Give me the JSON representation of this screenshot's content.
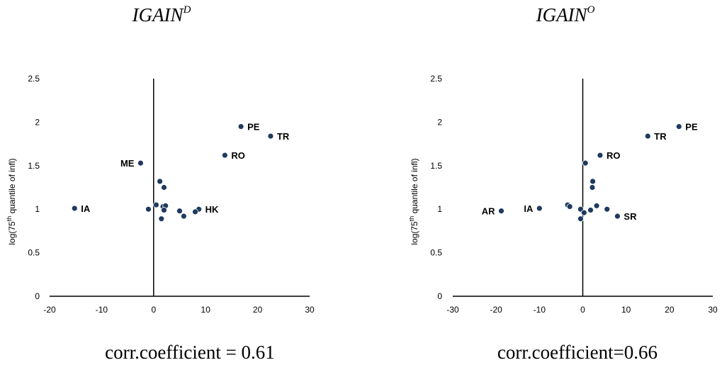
{
  "chart_data": [
    {
      "type": "scatter",
      "title": "IGAIN",
      "title_sup": "D",
      "caption": "corr.coefficient = 0.61",
      "ylabel_pre": "log(75",
      "ylabel_sup": "th",
      "ylabel_post": " quantile of infl)",
      "xlim": [
        -20,
        30
      ],
      "ylim": [
        0,
        2.5
      ],
      "x_ticks": [
        "-20",
        "-10",
        "0",
        "10",
        "20",
        "30"
      ],
      "x_tick_vals": [
        -20,
        -10,
        0,
        10,
        20,
        30
      ],
      "y_ticks": [
        "0",
        "0.5",
        "1",
        "1.5",
        "2",
        "2.5"
      ],
      "y_tick_vals": [
        0,
        0.5,
        1,
        1.5,
        2,
        2.5
      ],
      "point_color": "#1f3a5f",
      "points": [
        {
          "x": -15.2,
          "y": 1.01,
          "label": "IA",
          "side": "right"
        },
        {
          "x": -2.5,
          "y": 1.53,
          "label": "ME",
          "side": "left"
        },
        {
          "x": 16.8,
          "y": 1.95,
          "label": "PE",
          "side": "right"
        },
        {
          "x": 22.5,
          "y": 1.84,
          "label": "TR",
          "side": "right"
        },
        {
          "x": 13.7,
          "y": 1.62,
          "label": "RO",
          "side": "right"
        },
        {
          "x": 8.7,
          "y": 1.0,
          "label": "HK",
          "side": "right"
        },
        {
          "x": -1.0,
          "y": 1.0,
          "label": "",
          "side": "right"
        },
        {
          "x": 0.5,
          "y": 1.05,
          "label": "",
          "side": "right"
        },
        {
          "x": 1.2,
          "y": 1.32,
          "label": "",
          "side": "right"
        },
        {
          "x": 2.0,
          "y": 1.25,
          "label": "",
          "side": "right"
        },
        {
          "x": 1.8,
          "y": 1.03,
          "label": "",
          "side": "right"
        },
        {
          "x": 2.3,
          "y": 1.04,
          "label": "",
          "side": "right"
        },
        {
          "x": 2.0,
          "y": 0.99,
          "label": "",
          "side": "right"
        },
        {
          "x": 1.5,
          "y": 0.89,
          "label": "",
          "side": "right"
        },
        {
          "x": 5.0,
          "y": 0.98,
          "label": "",
          "side": "right"
        },
        {
          "x": 5.8,
          "y": 0.92,
          "label": "",
          "side": "right"
        },
        {
          "x": 8.0,
          "y": 0.97,
          "label": "",
          "side": "right"
        }
      ]
    },
    {
      "type": "scatter",
      "title": "IGAIN",
      "title_sup": "O",
      "caption": "corr.coefficient=0.66",
      "ylabel_pre": "log(75",
      "ylabel_sup": "th",
      "ylabel_post": " quantile of infl)",
      "xlim": [
        -30,
        30
      ],
      "ylim": [
        0,
        2.5
      ],
      "x_ticks": [
        "-30",
        "-20",
        "-10",
        "0",
        "10",
        "20",
        "30"
      ],
      "x_tick_vals": [
        -30,
        -20,
        -10,
        0,
        10,
        20,
        30
      ],
      "y_ticks": [
        "0",
        "0.5",
        "1",
        "1.5",
        "2",
        "2.5"
      ],
      "y_tick_vals": [
        0,
        0.5,
        1,
        1.5,
        2,
        2.5
      ],
      "point_color": "#1f3a5f",
      "points": [
        {
          "x": -18.8,
          "y": 0.98,
          "label": "AR",
          "side": "left"
        },
        {
          "x": -10.0,
          "y": 1.01,
          "label": "IA",
          "side": "left"
        },
        {
          "x": 22.2,
          "y": 1.95,
          "label": "PE",
          "side": "right"
        },
        {
          "x": 15.0,
          "y": 1.84,
          "label": "TR",
          "side": "right"
        },
        {
          "x": 4.0,
          "y": 1.62,
          "label": "RO",
          "side": "right"
        },
        {
          "x": 8.0,
          "y": 0.92,
          "label": "SR",
          "side": "right"
        },
        {
          "x": 0.6,
          "y": 1.53,
          "label": "",
          "side": "right"
        },
        {
          "x": 2.3,
          "y": 1.32,
          "label": "",
          "side": "right"
        },
        {
          "x": 2.2,
          "y": 1.25,
          "label": "",
          "side": "right"
        },
        {
          "x": -3.5,
          "y": 1.05,
          "label": "",
          "side": "right"
        },
        {
          "x": -3.0,
          "y": 1.03,
          "label": "",
          "side": "right"
        },
        {
          "x": -0.5,
          "y": 1.0,
          "label": "",
          "side": "right"
        },
        {
          "x": 0.3,
          "y": 0.96,
          "label": "",
          "side": "right"
        },
        {
          "x": -0.5,
          "y": 0.89,
          "label": "",
          "side": "right"
        },
        {
          "x": 1.8,
          "y": 0.99,
          "label": "",
          "side": "right"
        },
        {
          "x": 3.2,
          "y": 1.04,
          "label": "",
          "side": "right"
        },
        {
          "x": 5.6,
          "y": 1.0,
          "label": "",
          "side": "right"
        }
      ]
    }
  ]
}
